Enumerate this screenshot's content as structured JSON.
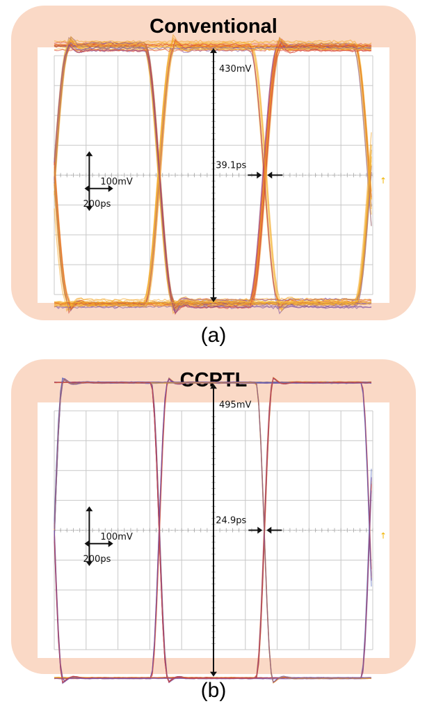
{
  "colors": {
    "panel_bg": "#fad9c6",
    "plot_bg": "#ffffff",
    "grid": "#c8c8c8",
    "trace_warm": "#f3a21f",
    "trace_red": "#d9432f",
    "trace_purple": "#7a4fa0",
    "trace_blue": "#5a6fc2",
    "annotation": "#111111"
  },
  "chart_data": [
    {
      "type": "eye-diagram",
      "panel_title": "Conventional",
      "caption": "(a)",
      "grid": true,
      "x_divisions": 10,
      "y_divisions": 8,
      "time_per_division_ps": 100,
      "volt_per_division_mV": 50,
      "eye_amplitude_mV": 430,
      "eye_crossing_jitter_ps": 39.1,
      "scale_markers": {
        "vertical": "100mV",
        "horizontal": "200ps"
      },
      "labels": {
        "amplitude": "430mV",
        "jitter": "39.1ps",
        "vscale": "100mV",
        "hscale": "200ps"
      },
      "bit_crossings_div": [
        3.3,
        6.6
      ],
      "high_level_mV": 215,
      "low_level_mV": -215
    },
    {
      "type": "eye-diagram",
      "panel_title": "CCPTL",
      "caption": "(b)",
      "grid": true,
      "x_divisions": 10,
      "y_divisions": 8,
      "time_per_division_ps": 100,
      "volt_per_division_mV": 50,
      "eye_amplitude_mV": 495,
      "eye_crossing_jitter_ps": 24.9,
      "scale_markers": {
        "vertical": "100mV",
        "horizontal": "200ps"
      },
      "labels": {
        "amplitude": "495mV",
        "jitter": "24.9ps",
        "vscale": "100mV",
        "hscale": "200ps"
      },
      "bit_crossings_div": [
        3.3,
        6.6
      ],
      "high_level_mV": 247.5,
      "low_level_mV": -247.5
    }
  ]
}
